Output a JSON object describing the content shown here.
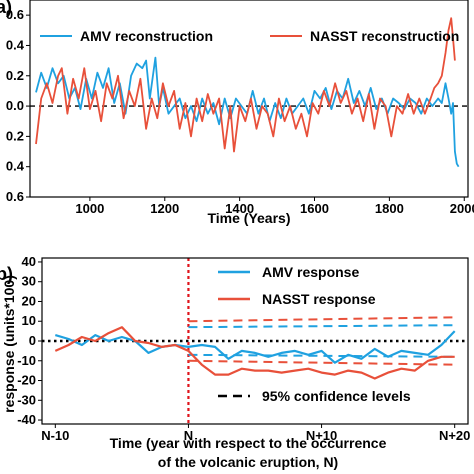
{
  "chart_data": [
    {
      "type": "line",
      "panel_label": "a)",
      "xlabel": "Time (Years)",
      "ylabel": "",
      "xlim": [
        840,
        2010
      ],
      "ylim": [
        -0.6,
        0.7
      ],
      "xticks": [
        1000,
        1200,
        1400,
        1600,
        1800,
        2000
      ],
      "xtick_labels": [
        "1000",
        "1200",
        "1400",
        "1600",
        "1800",
        "2000"
      ],
      "yticks": [
        -0.6,
        -0.4,
        -0.2,
        0.0,
        0.2,
        0.4,
        0.6
      ],
      "ytick_labels": [
        "0.6",
        "0.4",
        "0.2",
        "0.0",
        "0.2",
        "0.4",
        "0.6"
      ],
      "reference_line": 0,
      "legend_placement": "top",
      "series": [
        {
          "name": "AMV reconstruction",
          "color": "#1fa1e0",
          "points": [
            [
              856,
              0.09
            ],
            [
              870,
              0.22
            ],
            [
              885,
              0.12
            ],
            [
              900,
              0.25
            ],
            [
              915,
              0.15
            ],
            [
              930,
              0.2
            ],
            [
              945,
              0.05
            ],
            [
              960,
              0.12
            ],
            [
              975,
              -0.02
            ],
            [
              990,
              0.18
            ],
            [
              1005,
              0.05
            ],
            [
              1020,
              0.22
            ],
            [
              1035,
              0.12
            ],
            [
              1050,
              0.25
            ],
            [
              1065,
              0.02
            ],
            [
              1080,
              0.15
            ],
            [
              1095,
              -0.05
            ],
            [
              1110,
              0.2
            ],
            [
              1125,
              0.28
            ],
            [
              1140,
              0.25
            ],
            [
              1150,
              0.3
            ],
            [
              1160,
              0.05
            ],
            [
              1175,
              0.32
            ],
            [
              1185,
              0.0
            ],
            [
              1195,
              0.12
            ],
            [
              1210,
              -0.05
            ],
            [
              1225,
              0.0
            ],
            [
              1240,
              0.05
            ],
            [
              1255,
              -0.08
            ],
            [
              1270,
              0.0
            ],
            [
              1285,
              -0.1
            ],
            [
              1300,
              0.05
            ],
            [
              1315,
              -0.05
            ],
            [
              1330,
              0.02
            ],
            [
              1345,
              -0.12
            ],
            [
              1360,
              0.05
            ],
            [
              1375,
              -0.08
            ],
            [
              1390,
              0.05
            ],
            [
              1405,
              0.0
            ],
            [
              1420,
              -0.05
            ],
            [
              1435,
              0.1
            ],
            [
              1450,
              -0.05
            ],
            [
              1465,
              0.05
            ],
            [
              1480,
              -0.1
            ],
            [
              1495,
              0.02
            ],
            [
              1510,
              -0.08
            ],
            [
              1525,
              0.05
            ],
            [
              1540,
              -0.05
            ],
            [
              1555,
              0.0
            ],
            [
              1570,
              0.05
            ],
            [
              1585,
              -0.05
            ],
            [
              1600,
              0.1
            ],
            [
              1615,
              0.05
            ],
            [
              1630,
              0.12
            ],
            [
              1645,
              -0.02
            ],
            [
              1660,
              0.1
            ],
            [
              1675,
              0.05
            ],
            [
              1690,
              0.18
            ],
            [
              1705,
              0.02
            ],
            [
              1720,
              0.1
            ],
            [
              1735,
              0.0
            ],
            [
              1750,
              0.12
            ],
            [
              1765,
              -0.02
            ],
            [
              1780,
              0.05
            ],
            [
              1795,
              -0.05
            ],
            [
              1810,
              0.05
            ],
            [
              1825,
              0.02
            ],
            [
              1840,
              -0.02
            ],
            [
              1855,
              0.05
            ],
            [
              1870,
              0.02
            ],
            [
              1885,
              -0.05
            ],
            [
              1900,
              0.05
            ],
            [
              1915,
              0.0
            ],
            [
              1930,
              0.05
            ],
            [
              1940,
              0.02
            ],
            [
              1950,
              0.15
            ],
            [
              1958,
              0.05
            ],
            [
              1965,
              -0.05
            ],
            [
              1970,
              0.02
            ],
            [
              1975,
              -0.3
            ],
            [
              1980,
              -0.38
            ],
            [
              1985,
              -0.4
            ]
          ]
        },
        {
          "name": "NASST reconstruction",
          "color": "#e8503a",
          "points": [
            [
              856,
              -0.25
            ],
            [
              870,
              0.05
            ],
            [
              885,
              0.15
            ],
            [
              900,
              0.02
            ],
            [
              915,
              0.2
            ],
            [
              925,
              0.25
            ],
            [
              940,
              -0.05
            ],
            [
              955,
              0.18
            ],
            [
              970,
              0.05
            ],
            [
              985,
              0.25
            ],
            [
              1000,
              -0.02
            ],
            [
              1015,
              0.1
            ],
            [
              1030,
              -0.1
            ],
            [
              1045,
              0.15
            ],
            [
              1060,
              0.05
            ],
            [
              1075,
              0.2
            ],
            [
              1090,
              -0.08
            ],
            [
              1105,
              0.1
            ],
            [
              1120,
              0.0
            ],
            [
              1135,
              0.18
            ],
            [
              1150,
              -0.15
            ],
            [
              1165,
              0.05
            ],
            [
              1180,
              -0.08
            ],
            [
              1195,
              0.15
            ],
            [
              1210,
              0.0
            ],
            [
              1225,
              0.1
            ],
            [
              1240,
              -0.15
            ],
            [
              1255,
              0.02
            ],
            [
              1270,
              -0.2
            ],
            [
              1285,
              0.05
            ],
            [
              1300,
              -0.1
            ],
            [
              1315,
              0.08
            ],
            [
              1330,
              -0.05
            ],
            [
              1345,
              0.05
            ],
            [
              1360,
              -0.28
            ],
            [
              1375,
              0.0
            ],
            [
              1385,
              -0.3
            ],
            [
              1400,
              0.0
            ],
            [
              1415,
              -0.1
            ],
            [
              1430,
              0.05
            ],
            [
              1445,
              -0.15
            ],
            [
              1460,
              0.0
            ],
            [
              1475,
              -0.05
            ],
            [
              1490,
              -0.2
            ],
            [
              1505,
              0.05
            ],
            [
              1520,
              -0.1
            ],
            [
              1535,
              0.0
            ],
            [
              1550,
              -0.15
            ],
            [
              1565,
              -0.05
            ],
            [
              1580,
              -0.2
            ],
            [
              1595,
              0.02
            ],
            [
              1610,
              -0.05
            ],
            [
              1625,
              0.1
            ],
            [
              1640,
              0.0
            ],
            [
              1655,
              0.15
            ],
            [
              1670,
              0.02
            ],
            [
              1685,
              0.1
            ],
            [
              1700,
              -0.05
            ],
            [
              1715,
              0.05
            ],
            [
              1730,
              -0.1
            ],
            [
              1745,
              0.08
            ],
            [
              1760,
              -0.15
            ],
            [
              1775,
              0.05
            ],
            [
              1790,
              0.0
            ],
            [
              1805,
              -0.2
            ],
            [
              1820,
              0.0
            ],
            [
              1835,
              -0.05
            ],
            [
              1850,
              0.08
            ],
            [
              1865,
              -0.05
            ],
            [
              1880,
              0.05
            ],
            [
              1895,
              -0.05
            ],
            [
              1910,
              0.05
            ],
            [
              1920,
              0.12
            ],
            [
              1930,
              0.15
            ],
            [
              1940,
              0.2
            ],
            [
              1950,
              0.35
            ],
            [
              1958,
              0.5
            ],
            [
              1965,
              0.58
            ],
            [
              1970,
              0.45
            ],
            [
              1975,
              0.3
            ]
          ]
        }
      ]
    },
    {
      "type": "line",
      "panel_label": "b)",
      "xlabel": "Time (year with respect to the occurrence",
      "xlabel_line2": "of the volcanic eruption, N)",
      "ylabel": "response (units*100)",
      "xlim": [
        -11,
        21
      ],
      "ylim": [
        -42,
        42
      ],
      "xticks": [
        -10,
        0,
        10,
        20
      ],
      "xtick_labels": [
        "N-10",
        "N",
        "N+10",
        "N+20"
      ],
      "yticks": [
        -40,
        -30,
        -20,
        -10,
        0,
        10,
        20,
        30,
        40
      ],
      "ytick_labels": [
        "-40",
        "-30",
        "-20",
        "-10",
        "0",
        "10",
        "20",
        "30",
        "40"
      ],
      "eruption_marker_x": 0,
      "reference_line": 0,
      "legend_placement": "top-right",
      "series": [
        {
          "name": "AMV response",
          "color": "#1fa1e0",
          "x": [
            -10,
            -9,
            -8,
            -7,
            -6,
            -5,
            -4,
            -3,
            -2,
            -1,
            0,
            1,
            2,
            3,
            4,
            5,
            6,
            7,
            8,
            9,
            10,
            11,
            12,
            13,
            14,
            15,
            16,
            17,
            18,
            19,
            20
          ],
          "values": [
            3,
            1,
            -2,
            3,
            0,
            2,
            0,
            -6,
            -3,
            -2,
            -3,
            -2,
            -3,
            -9,
            -5,
            -6,
            -8,
            -6,
            -5,
            -7,
            -5,
            -11,
            -7,
            -9,
            -4,
            -8,
            -5,
            -6,
            -7,
            -2,
            5
          ]
        },
        {
          "name": "NASST response",
          "color": "#e8503a",
          "x": [
            -10,
            -9,
            -8,
            -7,
            -6,
            -5,
            -4,
            -3,
            -2,
            -1,
            0,
            1,
            2,
            3,
            4,
            5,
            6,
            7,
            8,
            9,
            10,
            11,
            12,
            13,
            14,
            15,
            16,
            17,
            18,
            19,
            20
          ],
          "values": [
            -5,
            -2,
            2,
            0,
            4,
            7,
            0,
            -1,
            -3,
            -2,
            -5,
            -12,
            -17,
            -17,
            -14,
            -15,
            -15,
            -16,
            -15,
            -14,
            -16,
            -17,
            -15,
            -16,
            -19,
            -16,
            -14,
            -15,
            -10,
            -8,
            -8
          ]
        },
        {
          "name": "95% confidence levels",
          "style": "dashed",
          "bands": [
            {
              "color": "#e8503a",
              "x": [
                0,
                20
              ],
              "upper": [
                10,
                12
              ],
              "lower": [
                -10,
                -12
              ]
            },
            {
              "color": "#1fa1e0",
              "x": [
                0,
                20
              ],
              "upper": [
                7,
                8
              ],
              "lower": [
                -7,
                -8
              ]
            }
          ]
        }
      ]
    }
  ]
}
